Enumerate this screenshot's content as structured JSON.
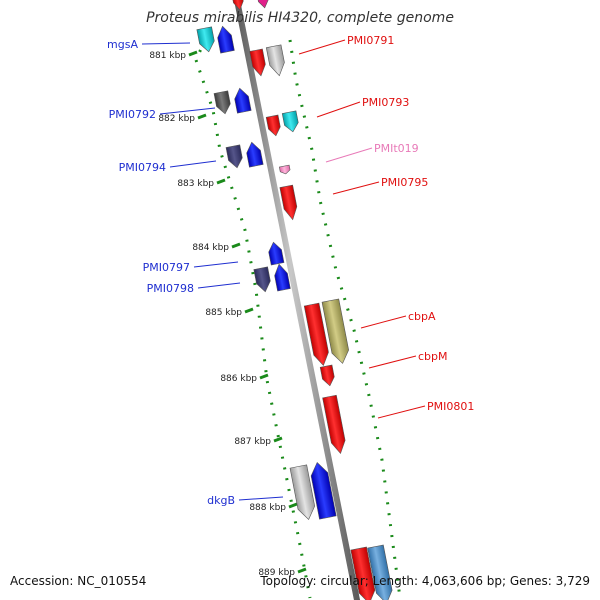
{
  "title": "Proteus mirabilis HI4320, complete genome",
  "accession": "Accession: NC_010554",
  "summary": "Topology: circular; Length: 4,063,606 bp; Genes: 3,729",
  "colors": {
    "backbone": "#8a8a8a",
    "ticks": "#1a8a1a",
    "left_label": "#1f2fd0",
    "right_label": "#e01010",
    "rna_label": "#e87ab8"
  },
  "kbp_ticks": [
    {
      "label": "881 kbp"
    },
    {
      "label": "882 kbp"
    },
    {
      "label": "883 kbp"
    },
    {
      "label": "884 kbp"
    },
    {
      "label": "885 kbp"
    },
    {
      "label": "886 kbp"
    },
    {
      "label": "887 kbp"
    },
    {
      "label": "888 kbp"
    },
    {
      "label": "889 kbp"
    }
  ],
  "left_labels": [
    {
      "text": "mgsA"
    },
    {
      "text": "PMI0792"
    },
    {
      "text": "PMI0794"
    },
    {
      "text": "PMI0797"
    },
    {
      "text": "PMI0798"
    },
    {
      "text": "dkgB"
    }
  ],
  "right_labels": [
    {
      "text": "PMI0791"
    },
    {
      "text": "PMI0793"
    },
    {
      "text": "PMIt019"
    },
    {
      "text": "PMI0795"
    },
    {
      "text": "cbpA"
    },
    {
      "text": "cbpM"
    },
    {
      "text": "PMI0801"
    }
  ]
}
